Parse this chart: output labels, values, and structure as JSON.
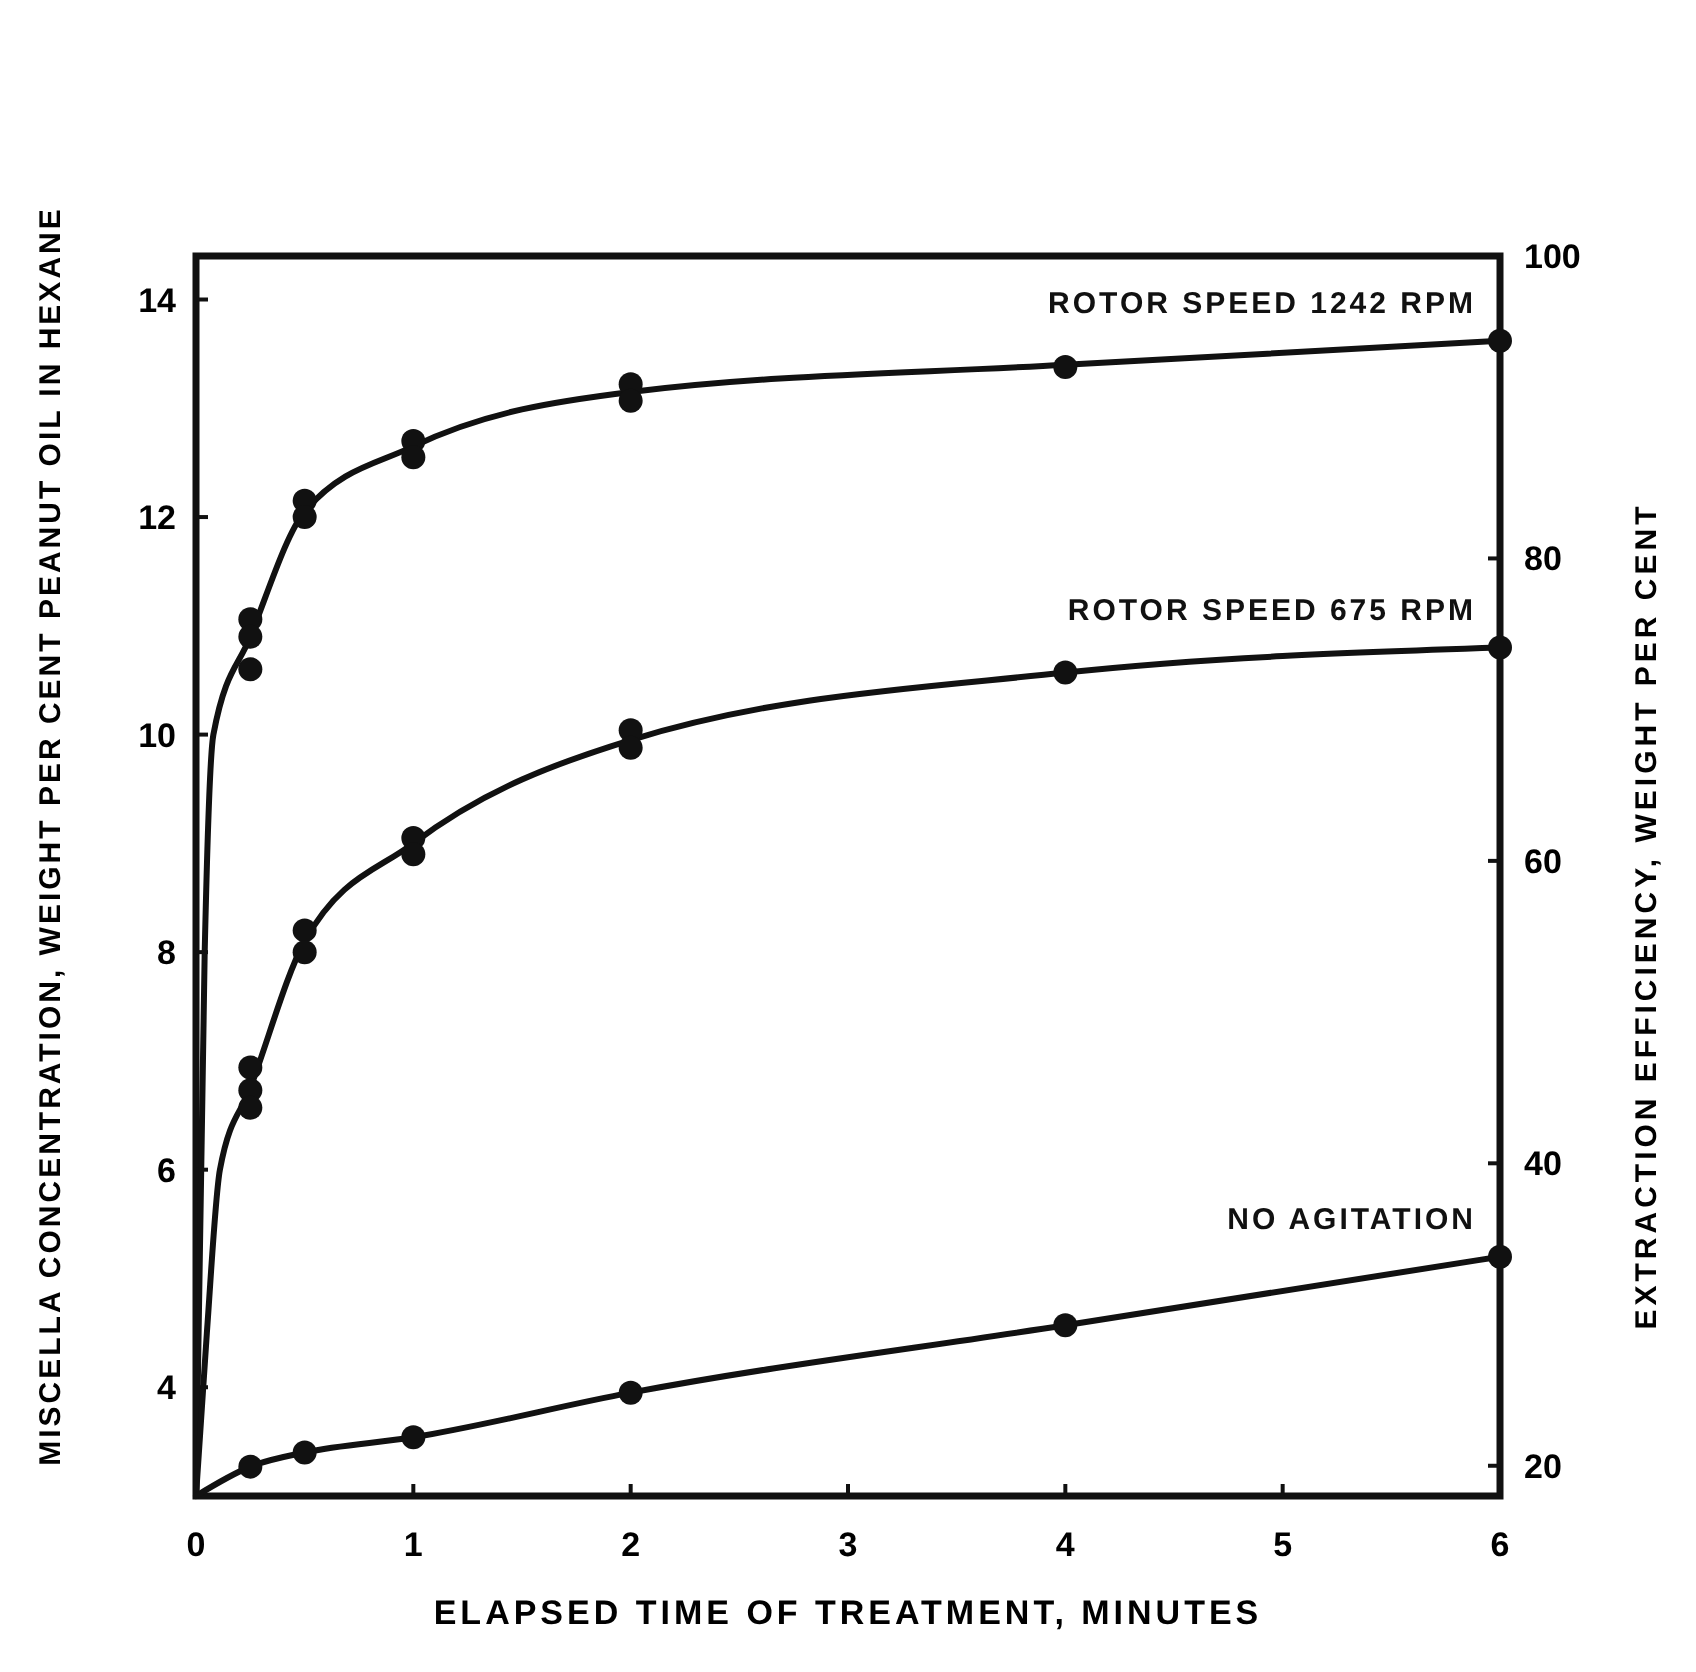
{
  "chart_data": {
    "type": "line",
    "xlabel": "ELAPSED TIME OF TREATMENT, MINUTES",
    "ylabel": "MISCELLA CONCENTRATION, WEIGHT PER CENT PEANUT OIL IN HEXANE",
    "y2label": "EXTRACTION EFFICIENCY, WEIGHT PER CENT",
    "xlim": [
      0,
      6
    ],
    "xticks": [
      0,
      1,
      2,
      3,
      4,
      5,
      6
    ],
    "ylim": [
      3,
      14.4
    ],
    "yticks": [
      4,
      6,
      8,
      10,
      12,
      14
    ],
    "y2lim": [
      18,
      100
    ],
    "y2ticks": [
      20,
      40,
      60,
      80,
      100
    ],
    "grid": false,
    "series": [
      {
        "name": "ROTOR SPEED 1242 RPM",
        "color": "#111111",
        "marker": "none",
        "line_style": "solid",
        "x": [
          0,
          0.04,
          0.08,
          0.25,
          0.5,
          1,
          2,
          4,
          6
        ],
        "values": [
          3,
          8,
          10,
          10.9,
          12.05,
          12.65,
          13.15,
          13.4,
          13.62
        ]
      },
      {
        "name": "ROTOR SPEED 675 RPM",
        "color": "#111111",
        "marker": "none",
        "line_style": "solid",
        "x": [
          0,
          0.05,
          0.11,
          0.25,
          0.5,
          1,
          2,
          4,
          6
        ],
        "values": [
          3,
          4.5,
          6,
          6.75,
          8.1,
          9,
          9.95,
          10.57,
          10.8
        ]
      },
      {
        "name": "NO AGITATION",
        "color": "#111111",
        "marker": "none",
        "line_style": "solid",
        "x": [
          0,
          0.25,
          0.5,
          1,
          2,
          4,
          6
        ],
        "values": [
          3,
          3.27,
          3.4,
          3.54,
          3.95,
          4.57,
          5.2
        ]
      },
      {
        "type": "scatter",
        "color": "#111111",
        "marker": "circle",
        "x": [
          0.25,
          0.25,
          0.25,
          0.5,
          0.5,
          1,
          1,
          2,
          2,
          4,
          6
        ],
        "values": [
          11.06,
          10.9,
          10.6,
          12.15,
          12.0,
          12.7,
          12.55,
          13.22,
          13.07,
          13.38,
          13.62
        ]
      },
      {
        "type": "scatter",
        "color": "#111111",
        "marker": "circle",
        "x": [
          0.25,
          0.25,
          0.25,
          0.5,
          0.5,
          1,
          1,
          2,
          2,
          4,
          6
        ],
        "values": [
          6.94,
          6.73,
          6.57,
          8.2,
          8.0,
          9.05,
          8.9,
          10.04,
          9.88,
          10.57,
          10.8
        ]
      },
      {
        "type": "scatter",
        "color": "#111111",
        "marker": "circle",
        "x": [
          0.25,
          0.5,
          1,
          2,
          4,
          6
        ],
        "values": [
          3.27,
          3.4,
          3.54,
          3.95,
          4.57,
          5.2
        ]
      }
    ]
  }
}
